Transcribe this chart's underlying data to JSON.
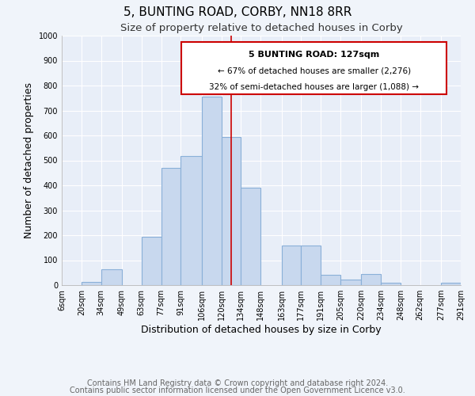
{
  "title": "5, BUNTING ROAD, CORBY, NN18 8RR",
  "subtitle": "Size of property relative to detached houses in Corby",
  "xlabel": "Distribution of detached houses by size in Corby",
  "ylabel": "Number of detached properties",
  "bar_left_edges": [
    6,
    20,
    34,
    49,
    63,
    77,
    91,
    106,
    120,
    134,
    148,
    163,
    177,
    191,
    205,
    220,
    234,
    248,
    262,
    277
  ],
  "bar_heights": [
    0,
    13,
    63,
    0,
    195,
    470,
    518,
    755,
    595,
    390,
    0,
    160,
    160,
    42,
    23,
    45,
    10,
    0,
    0,
    10
  ],
  "bin_labels": [
    "6sqm",
    "20sqm",
    "34sqm",
    "49sqm",
    "63sqm",
    "77sqm",
    "91sqm",
    "106sqm",
    "120sqm",
    "134sqm",
    "148sqm",
    "163sqm",
    "177sqm",
    "191sqm",
    "205sqm",
    "220sqm",
    "234sqm",
    "248sqm",
    "262sqm",
    "277sqm",
    "291sqm"
  ],
  "bar_color": "#c8d8ee",
  "bar_edge_color": "#8ab0d8",
  "vline_x": 127,
  "vline_color": "#cc0000",
  "annotation_title": "5 BUNTING ROAD: 127sqm",
  "annotation_left": "← 67% of detached houses are smaller (2,276)",
  "annotation_right": "32% of semi-detached houses are larger (1,088) →",
  "annotation_box_color": "#ffffff",
  "annotation_box_edge": "#cc0000",
  "ylim": [
    0,
    1000
  ],
  "yticks": [
    0,
    100,
    200,
    300,
    400,
    500,
    600,
    700,
    800,
    900,
    1000
  ],
  "footer1": "Contains HM Land Registry data © Crown copyright and database right 2024.",
  "footer2": "Contains public sector information licensed under the Open Government Licence v3.0.",
  "bg_color": "#f0f4fa",
  "plot_bg_color": "#e8eef8",
  "grid_color": "#ffffff",
  "title_fontsize": 11,
  "subtitle_fontsize": 9.5,
  "axis_label_fontsize": 9,
  "tick_fontsize": 7,
  "footer_fontsize": 7
}
